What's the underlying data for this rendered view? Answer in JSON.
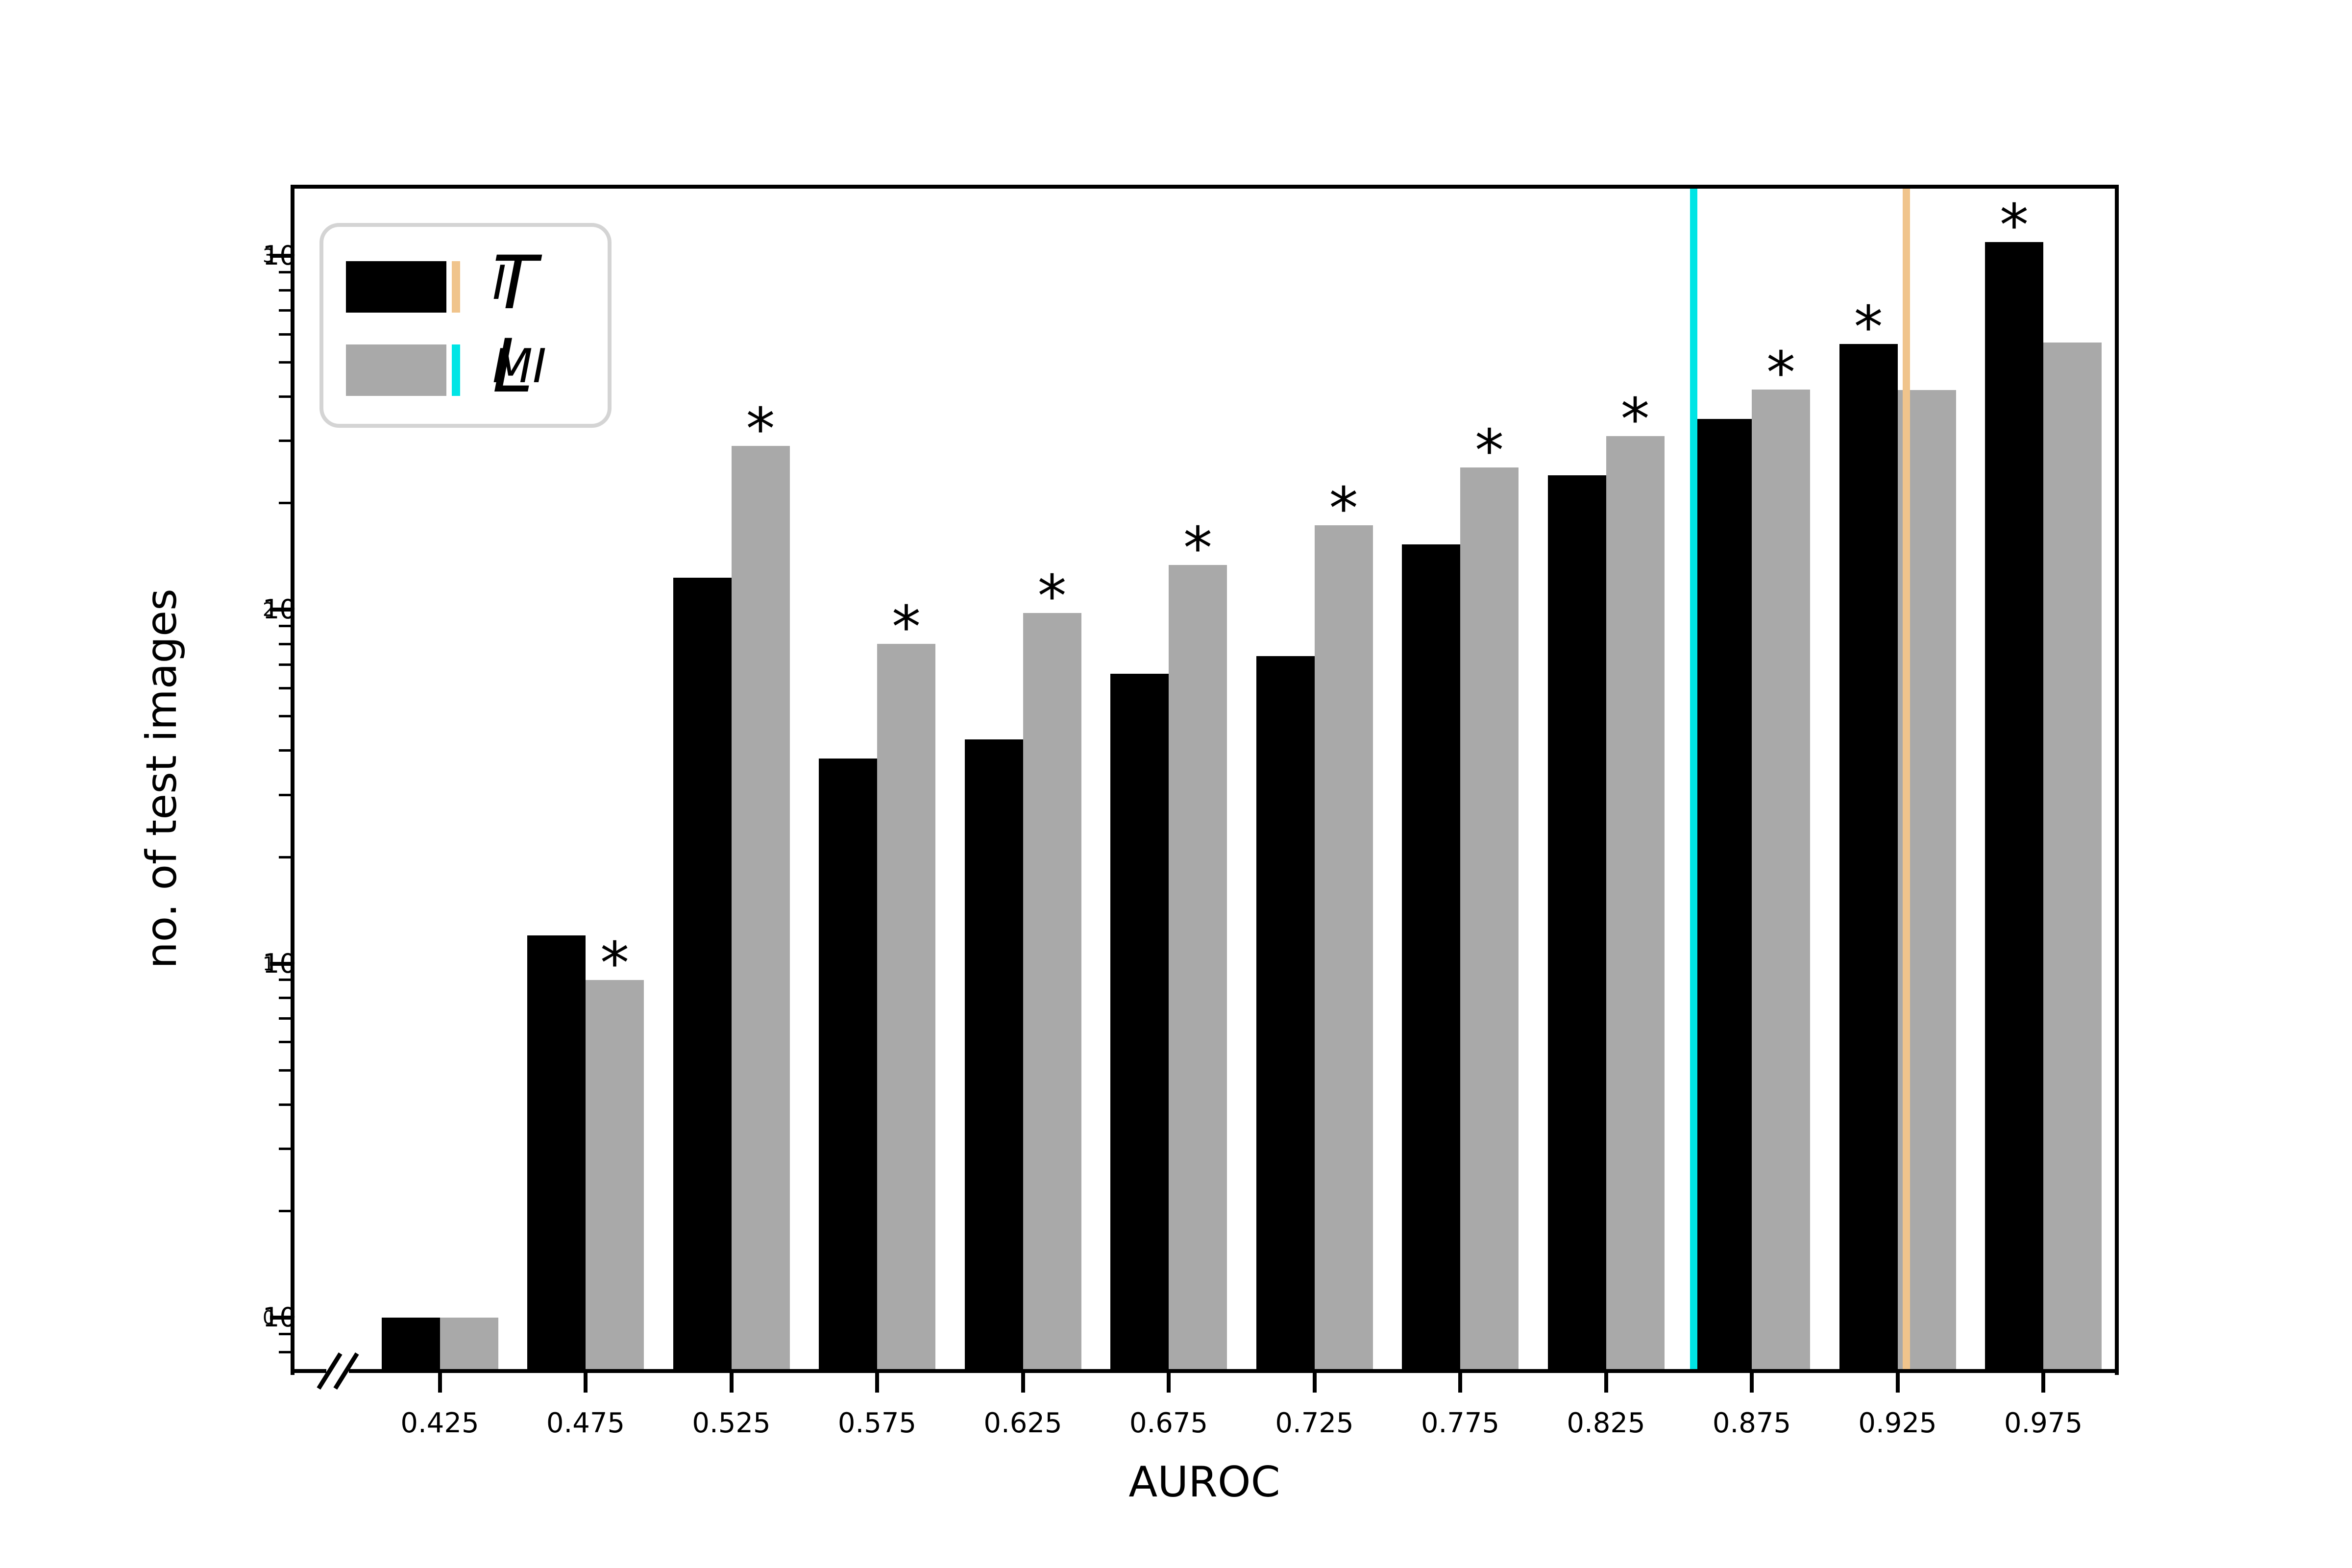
{
  "chart_data": {
    "type": "bar",
    "title": "",
    "xlabel": "AUROC",
    "ylabel": "no. of test images",
    "yscale": "log",
    "grid": false,
    "legend_position": "upper left",
    "axis_break_lower_left": true,
    "xlim": [
      0.4,
      1.0
    ],
    "ylim": [
      0.7,
      1300
    ],
    "bar_width_axis_units": 0.02,
    "categories": [
      0.425,
      0.475,
      0.525,
      0.575,
      0.625,
      0.675,
      0.725,
      0.775,
      0.825,
      0.875,
      0.925,
      0.975
    ],
    "x_tick_labels": [
      "0.425",
      "0.475",
      "0.525",
      "0.575",
      "0.625",
      "0.675",
      "0.725",
      "0.775",
      "0.825",
      "0.875",
      "0.925",
      "0.975"
    ],
    "y_tick_exponents": [
      0,
      1,
      2,
      3
    ],
    "y_tick_base": "10",
    "series": [
      {
        "name": "T_II",
        "label_main": "T",
        "label_sub": "II",
        "color": "#000000",
        "legend_tick_color": "#F0C48C",
        "values": [
          1,
          12,
          123,
          38,
          43,
          66,
          74,
          153,
          240,
          346,
          563,
          1094
        ]
      },
      {
        "name": "L_MI",
        "label_main": "L",
        "label_sub": "MI",
        "color": "#A9A9A9",
        "legend_tick_color": "#00E5E5",
        "values": [
          1,
          9,
          290,
          80,
          98,
          134,
          173,
          252,
          309,
          419,
          418,
          568
        ]
      }
    ],
    "star_symbol": "*",
    "significance_stars": [
      null,
      "L_MI",
      "L_MI",
      "L_MI",
      "L_MI",
      "L_MI",
      "L_MI",
      "L_MI",
      "L_MI",
      "L_MI",
      "T_II",
      "T_II"
    ],
    "vlines": [
      {
        "x": 0.855,
        "color": "#00E5E5"
      },
      {
        "x": 0.928,
        "color": "#F0C48C"
      }
    ]
  }
}
